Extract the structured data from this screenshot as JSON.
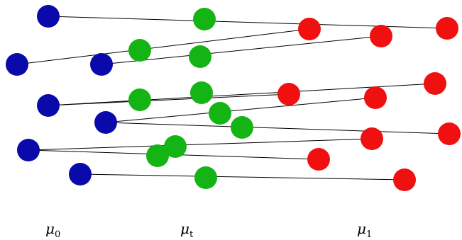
{
  "colors": {
    "source": "#0a0aaa",
    "intermediate": "#14b414",
    "target": "#f01010",
    "line": "#000000",
    "background": "#ffffff"
  },
  "labels": {
    "source": {
      "base": "μ",
      "sub": "0"
    },
    "intermediate": {
      "base": "μ",
      "sub": "t"
    },
    "target": {
      "base": "μ",
      "sub": "1"
    }
  }
}
